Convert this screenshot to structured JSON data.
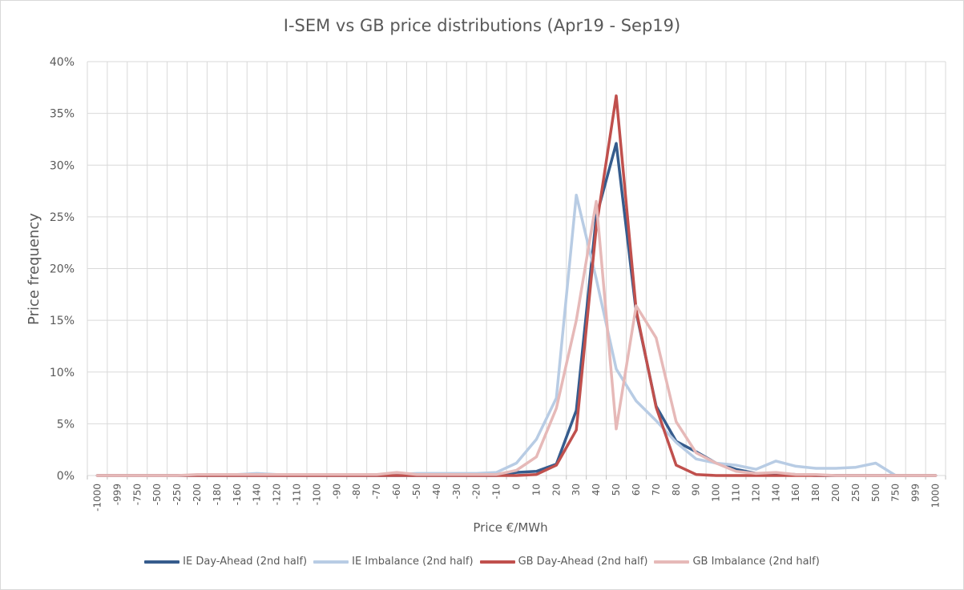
{
  "chart_data": {
    "type": "line",
    "title": "I-SEM vs GB price distributions (Apr19 - Sep19)",
    "xlabel": "Price €/MWh",
    "ylabel": "Price frequency",
    "ylim": [
      0,
      0.4
    ],
    "yticks": [
      "0%",
      "5%",
      "10%",
      "15%",
      "20%",
      "25%",
      "30%",
      "35%",
      "40%"
    ],
    "grid": true,
    "legend_position": "bottom",
    "categories": [
      "-1000",
      "-999",
      "-750",
      "-500",
      "-250",
      "-200",
      "-180",
      "-160",
      "-140",
      "-120",
      "-110",
      "-100",
      "-90",
      "-80",
      "-70",
      "-60",
      "-50",
      "-40",
      "-30",
      "-20",
      "-10",
      "0",
      "10",
      "20",
      "30",
      "40",
      "50",
      "60",
      "70",
      "80",
      "90",
      "100",
      "110",
      "120",
      "140",
      "160",
      "180",
      "200",
      "250",
      "500",
      "750",
      "999",
      "1000"
    ],
    "series": [
      {
        "name": "IE Day-Ahead (2nd half)",
        "color": "#365c8d",
        "values": [
          0,
          0,
          0,
          0,
          0,
          0,
          0,
          0,
          0,
          0,
          0,
          0,
          0,
          0,
          0,
          0,
          0,
          0,
          0,
          0,
          0,
          0.003,
          0.004,
          0.011,
          0.063,
          0.25,
          0.321,
          0.158,
          0.067,
          0.033,
          0.023,
          0.012,
          0.006,
          0.002,
          0.002,
          0.001,
          0,
          0,
          0,
          0,
          0,
          0,
          0
        ]
      },
      {
        "name": "IE Imbalance (2nd half)",
        "color": "#b8cce4",
        "values": [
          0,
          0,
          0,
          0,
          0,
          0,
          0.001,
          0.001,
          0.002,
          0.001,
          0.001,
          0.001,
          0.001,
          0.001,
          0.001,
          0.001,
          0.002,
          0.002,
          0.002,
          0.002,
          0.003,
          0.012,
          0.035,
          0.075,
          0.271,
          0.19,
          0.103,
          0.072,
          0.053,
          0.032,
          0.016,
          0.012,
          0.01,
          0.006,
          0.014,
          0.009,
          0.007,
          0.007,
          0.008,
          0.012,
          0,
          0,
          0
        ]
      },
      {
        "name": "GB Day-Ahead (2nd half)",
        "color": "#c0504d",
        "values": [
          0,
          0,
          0,
          0,
          0,
          0,
          0,
          0,
          0,
          0,
          0,
          0,
          0,
          0,
          0,
          0,
          0,
          0,
          0,
          0,
          0,
          0,
          0.001,
          0.01,
          0.044,
          0.24,
          0.367,
          0.16,
          0.066,
          0.01,
          0.001,
          0,
          0,
          0,
          0,
          0,
          0,
          0,
          0,
          0,
          0,
          0,
          0
        ]
      },
      {
        "name": "GB Imbalance (2nd half)",
        "color": "#e6b9b8",
        "values": [
          0,
          0,
          0,
          0,
          0,
          0.001,
          0.001,
          0.001,
          0.001,
          0.001,
          0.001,
          0.001,
          0.001,
          0.001,
          0.001,
          0.003,
          0.001,
          0.001,
          0.001,
          0.001,
          0.001,
          0.005,
          0.018,
          0.065,
          0.15,
          0.265,
          0.045,
          0.164,
          0.133,
          0.052,
          0.022,
          0.012,
          0.004,
          0.002,
          0.003,
          0.001,
          0.001,
          0,
          0,
          0,
          0,
          0,
          0
        ]
      }
    ]
  }
}
